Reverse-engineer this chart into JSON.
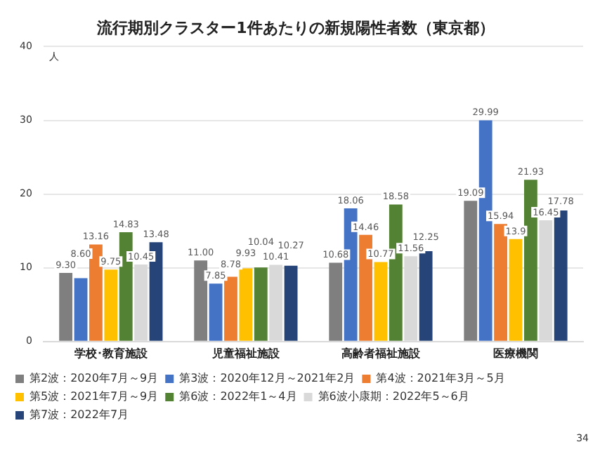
{
  "chart_data": {
    "type": "bar",
    "title": "流行期別クラスター1件あたりの新規陽性者数（東京都）",
    "ylabel": "人",
    "categories": [
      "学校･教育施設",
      "児童福祉施設",
      "高齢者福祉施設",
      "医療機関"
    ],
    "series": [
      {
        "name": "第2波：2020年7月～9月",
        "color": "#7f7f7f",
        "values": [
          9.3,
          11.0,
          10.68,
          19.09
        ],
        "value_labels": [
          "9.30",
          "11.00",
          "10.68",
          "19.09"
        ]
      },
      {
        "name": "第3波：2020年12月～2021年2月",
        "color": "#4472c4",
        "values": [
          8.6,
          7.85,
          18.06,
          29.99
        ],
        "value_labels": [
          "8.60",
          "7.85",
          "18.06",
          "29.99"
        ]
      },
      {
        "name": "第4波：2021年3月～5月",
        "color": "#ed7d31",
        "values": [
          13.16,
          8.78,
          14.46,
          15.94
        ],
        "value_labels": [
          "13.16",
          "8.78",
          "14.46",
          "15.94"
        ]
      },
      {
        "name": "第5波：2021年7月～9月",
        "color": "#ffc000",
        "values": [
          9.75,
          9.93,
          10.77,
          13.9
        ],
        "value_labels": [
          "9.75",
          "9.93",
          "10.77",
          "13.9"
        ]
      },
      {
        "name": "第6波：2022年1～4月",
        "color": "#548235",
        "values": [
          14.83,
          10.04,
          18.58,
          21.93
        ],
        "value_labels": [
          "14.83",
          "10.04",
          "18.58",
          "21.93"
        ]
      },
      {
        "name": "第6波小康期：2022年5～6月",
        "color": "#d9d9d9",
        "values": [
          10.45,
          10.41,
          11.56,
          16.45
        ],
        "value_labels": [
          "10.45",
          "10.41",
          "11.56",
          "16.45"
        ]
      },
      {
        "name": "第7波：2022年7月",
        "color": "#264478",
        "values": [
          13.48,
          10.27,
          12.25,
          17.78
        ],
        "value_labels": [
          "13.48",
          "10.27",
          "12.25",
          "17.78"
        ]
      }
    ],
    "ylim": [
      0,
      40
    ],
    "yticks": [
      0,
      10,
      20,
      30,
      40
    ],
    "grid": "y",
    "legend": "bottom",
    "annotations": [
      "34"
    ]
  }
}
